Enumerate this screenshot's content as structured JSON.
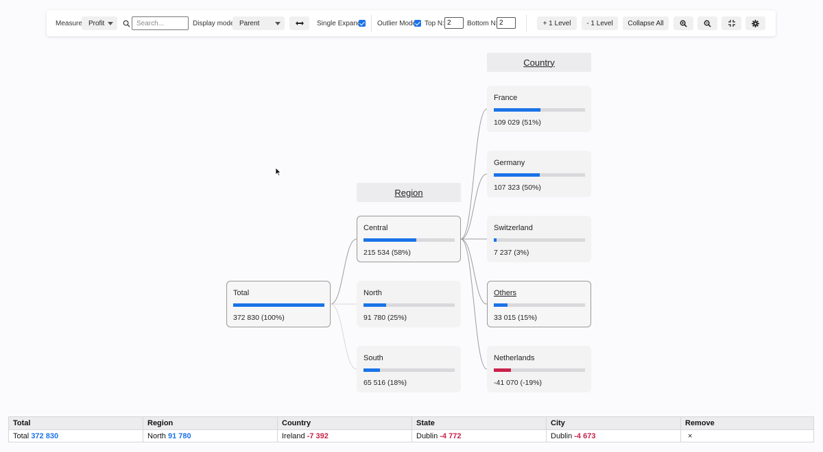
{
  "toolbar": {
    "measure_label": "Measure",
    "measure_value": "Profit",
    "search_placeholder": "Search...",
    "display_mode_label": "Display mode",
    "display_mode_value": "Parent",
    "single_expand_label": "Single Expand",
    "single_expand_checked": true,
    "outlier_mode_label": "Outlier Mode",
    "outlier_mode_checked": true,
    "top_n_label": "Top N:",
    "top_n_value": "2",
    "bottom_n_label": "Bottom N:",
    "bottom_n_value": "2",
    "plus_level_label": "+ 1 Level",
    "minus_level_label": "- 1 Level",
    "collapse_all_label": "Collapse All"
  },
  "tree": {
    "region_header": "Region",
    "country_header": "Country",
    "total": {
      "label": "Total",
      "value": "372 830 (100%)",
      "share": 1.0
    },
    "regions": [
      {
        "label": "Central",
        "value": "215 534 (58%)",
        "share": 0.58
      },
      {
        "label": "North",
        "value": "91 780 (25%)",
        "share": 0.25
      },
      {
        "label": "South",
        "value": "65 516 (18%)",
        "share": 0.18
      }
    ],
    "countries": [
      {
        "label": "France",
        "value": "109 029 (51%)",
        "share": 0.51
      },
      {
        "label": "Germany",
        "value": "107 323 (50%)",
        "share": 0.5
      },
      {
        "label": "Switzerland",
        "value": "7 237 (3%)",
        "share": 0.03
      },
      {
        "label": "Others",
        "value": "33 015 (15%)",
        "share": 0.15
      },
      {
        "label": "Netherlands",
        "value": "-41 070 (-19%)",
        "share": 0.19
      }
    ]
  },
  "path_table": {
    "headers": [
      "Total",
      "Region",
      "Country",
      "State",
      "City",
      "Remove"
    ],
    "cells": [
      {
        "name": "Total",
        "value": "372 830"
      },
      {
        "name": "North",
        "value": "91 780"
      },
      {
        "name": "Ireland",
        "value": "-7 392"
      },
      {
        "name": "Dublin",
        "value": "-4 772"
      },
      {
        "name": "Dublin",
        "value": "-4 673"
      }
    ],
    "remove_symbol": "×"
  },
  "colors": {
    "positive": "#1a73e8",
    "negative": "#c9214a"
  }
}
